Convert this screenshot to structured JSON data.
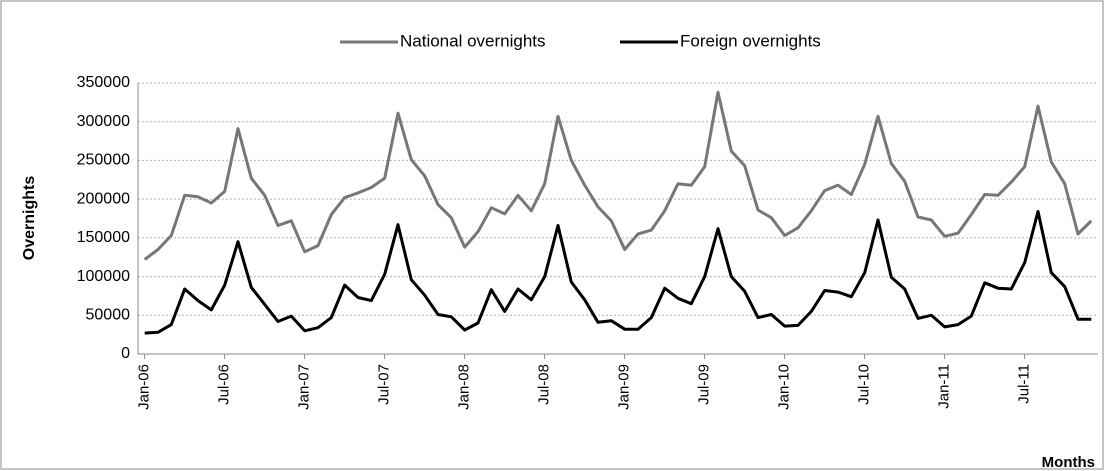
{
  "chart_data": {
    "type": "line",
    "y_label": "Overnights",
    "x_label": "Months",
    "categories": [
      "Jan-06",
      null,
      null,
      null,
      null,
      null,
      "Jul-06",
      null,
      null,
      null,
      null,
      null,
      "Jan-07",
      null,
      null,
      null,
      null,
      null,
      "Jul-07",
      null,
      null,
      null,
      null,
      null,
      "Jan-08",
      null,
      null,
      null,
      null,
      null,
      "Jul-08",
      null,
      null,
      null,
      null,
      null,
      "Jan-09",
      null,
      null,
      null,
      null,
      null,
      "Jul-09",
      null,
      null,
      null,
      null,
      null,
      "Jan-10",
      null,
      null,
      null,
      null,
      null,
      "Jul-10",
      null,
      null,
      null,
      null,
      null,
      "Jan-11",
      null,
      null,
      null,
      null,
      null,
      "Jul-11",
      null,
      null,
      null,
      null,
      null
    ],
    "series": [
      {
        "name": "National overnights",
        "color": "#777777",
        "values": [
          122000,
          135000,
          153000,
          205000,
          203000,
          195000,
          210000,
          291000,
          227000,
          205000,
          166000,
          172000,
          132000,
          140000,
          180000,
          202000,
          208000,
          215000,
          227000,
          311000,
          251000,
          230000,
          193000,
          176000,
          138000,
          158000,
          189000,
          181000,
          205000,
          185000,
          220000,
          307000,
          250000,
          218000,
          190000,
          172000,
          135000,
          155000,
          160000,
          185000,
          220000,
          218000,
          242000,
          338000,
          262000,
          243000,
          186000,
          176000,
          153000,
          163000,
          185000,
          211000,
          218000,
          206000,
          245000,
          307000,
          246000,
          223000,
          177000,
          173000,
          152000,
          156000,
          180000,
          206000,
          205000,
          222000,
          242000,
          320000,
          248000,
          220000,
          155000,
          172000
        ]
      },
      {
        "name": "Foreign overnights",
        "color": "#000000",
        "values": [
          27000,
          28000,
          38000,
          84000,
          69000,
          57000,
          89000,
          145000,
          86000,
          64000,
          42000,
          49000,
          30000,
          34000,
          47000,
          89000,
          73000,
          69000,
          103000,
          167000,
          96000,
          76000,
          51000,
          48000,
          31000,
          40000,
          83000,
          55000,
          84000,
          70000,
          100000,
          166000,
          93000,
          70000,
          41000,
          43000,
          32000,
          32000,
          47000,
          85000,
          72000,
          65000,
          100000,
          162000,
          100000,
          81000,
          47000,
          51000,
          36000,
          37000,
          55000,
          82000,
          80000,
          74000,
          105000,
          173000,
          99000,
          84000,
          46000,
          50000,
          35000,
          38000,
          49000,
          92000,
          85000,
          84000,
          118000,
          184000,
          105000,
          87000,
          45000,
          45000
        ]
      }
    ],
    "ylim": [
      0,
      350000
    ],
    "yticks": [
      0,
      50000,
      100000,
      150000,
      200000,
      250000,
      300000,
      350000
    ],
    "grid": true,
    "legend": "top"
  }
}
